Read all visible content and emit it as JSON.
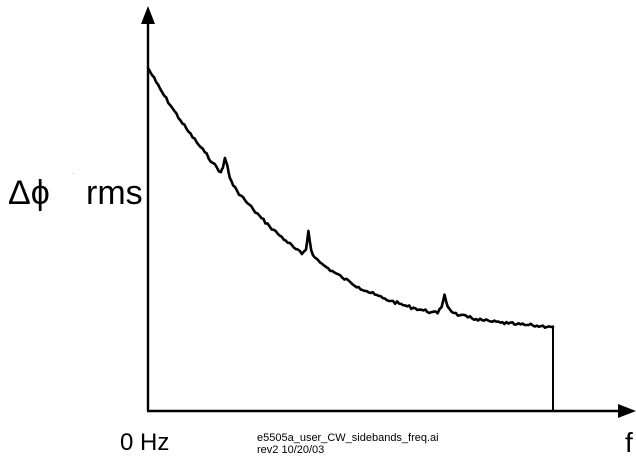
{
  "chart_data": {
    "type": "line",
    "title": "",
    "ylabel": {
      "symbol": "Δϕ",
      "mark": "˙",
      "suffix": "rms"
    },
    "xlabel": "f",
    "xtick_labels": [
      "0 Hz"
    ],
    "grid": false,
    "legend": "none",
    "line_color": "#000000",
    "axis_color": "#000000",
    "xlim": [
      0,
      100
    ],
    "ylim": [
      0,
      100
    ],
    "series": [
      {
        "x": [
          0,
          2,
          4,
          6,
          8,
          10,
          12,
          14,
          16,
          18,
          18.5,
          19,
          19.6,
          20.2,
          21,
          22,
          24,
          26,
          28,
          30,
          32,
          34,
          36,
          38,
          39,
          39.6,
          40.3,
          41.2,
          42.5,
          44,
          46,
          48,
          50,
          52,
          54,
          56,
          58,
          60,
          62,
          64,
          66,
          68,
          70,
          71.5,
          72.5,
          73.2,
          74,
          75.5,
          77,
          79,
          81,
          83,
          85,
          87,
          89,
          91,
          93,
          95,
          97,
          99,
          100
        ],
        "y": [
          100,
          95.2,
          90.5,
          86.3,
          82.1,
          78.2,
          74.6,
          71.2,
          67.5,
          64.3,
          65.8,
          69.2,
          66.5,
          62.4,
          59.8,
          57.9,
          54.6,
          51.5,
          48.6,
          45.8,
          43.3,
          40.9,
          38.5,
          36.3,
          37.8,
          44.2,
          37.6,
          35.1,
          33.4,
          31.8,
          30.0,
          28.2,
          26.6,
          25.0,
          23.6,
          22.4,
          21.2,
          20.2,
          19.3,
          18.4,
          17.7,
          17.0,
          16.4,
          16.0,
          18.1,
          22.4,
          18.3,
          16.1,
          15.3,
          14.6,
          14.0,
          13.5,
          13.1,
          12.8,
          12.5,
          12.2,
          12.0,
          11.8,
          11.6,
          11.5,
          11.4
        ]
      }
    ]
  },
  "caption": {
    "line1": "e5505a_user_CW_sidebands_freq.ai",
    "line2": "rev2 10/20/03"
  }
}
